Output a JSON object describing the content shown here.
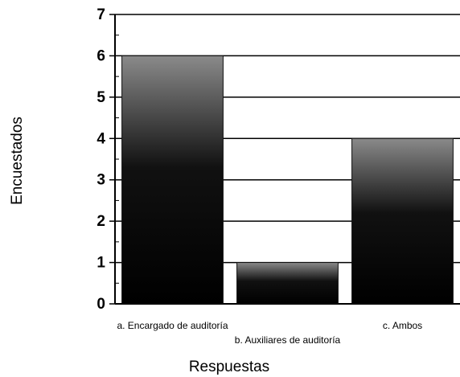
{
  "chart_data": {
    "type": "bar",
    "x_label": "Respuestas",
    "y_label": "Encuestados",
    "categories": [
      "a. Encargado de auditoría",
      "b. Auxiliares de auditoría",
      "c. Ambos"
    ],
    "values": [
      6,
      1,
      4
    ],
    "color": "#111111",
    "ylim": [
      0,
      7
    ],
    "yticks": [
      0,
      1,
      2,
      3,
      4,
      5,
      6,
      7
    ],
    "grid": true
  }
}
